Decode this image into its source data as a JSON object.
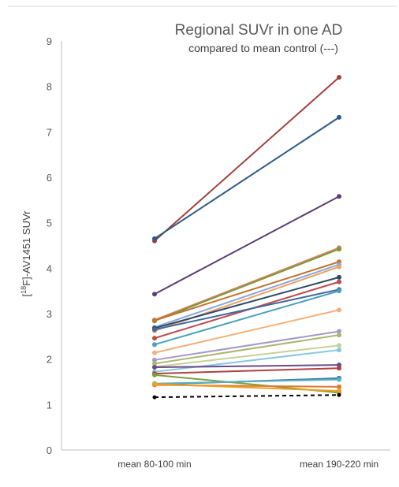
{
  "chart_data": {
    "type": "line",
    "title": "Regional SUVr in one AD",
    "subtitle": "compared to mean control (---)",
    "ylabel_prefix": "[",
    "ylabel_sup": "18",
    "ylabel_suffix": "F]-AV1451  SUVr",
    "xlabel": "",
    "categories": [
      "mean 80-100 min",
      "mean 190-220 min"
    ],
    "ylim": [
      0,
      9
    ],
    "yticks": [
      "0",
      "1",
      "2",
      "3",
      "4",
      "5",
      "6",
      "7",
      "8",
      "9"
    ],
    "grid": false,
    "legend": "none",
    "series": [
      {
        "values": [
          4.6,
          8.2
        ],
        "color": "#a0413a",
        "dashed": false
      },
      {
        "values": [
          4.65,
          7.32
        ],
        "color": "#2e5a8a",
        "dashed": false
      },
      {
        "values": [
          3.43,
          5.58
        ],
        "color": "#5a3f78",
        "dashed": false
      },
      {
        "values": [
          2.86,
          4.45
        ],
        "color": "#e08060",
        "dashed": false
      },
      {
        "values": [
          2.84,
          4.42
        ],
        "color": "#7a9a3a",
        "dashed": false
      },
      {
        "values": [
          2.85,
          4.14
        ],
        "color": "#c07530",
        "dashed": false
      },
      {
        "values": [
          2.7,
          4.08
        ],
        "color": "#8aa8d8",
        "dashed": false
      },
      {
        "values": [
          2.62,
          4.03
        ],
        "color": "#f0a060",
        "dashed": false
      },
      {
        "values": [
          2.68,
          3.8
        ],
        "color": "#2a4a6a",
        "dashed": false
      },
      {
        "values": [
          2.46,
          3.7
        ],
        "color": "#c04a4a",
        "dashed": false
      },
      {
        "values": [
          2.65,
          3.53
        ],
        "color": "#3a6aa0",
        "dashed": false
      },
      {
        "values": [
          2.32,
          3.5
        ],
        "color": "#4aa0b8",
        "dashed": false
      },
      {
        "values": [
          2.14,
          3.08
        ],
        "color": "#f4b07a",
        "dashed": false
      },
      {
        "values": [
          1.98,
          2.61
        ],
        "color": "#a898c8",
        "dashed": false
      },
      {
        "values": [
          1.9,
          2.53
        ],
        "color": "#a8b870",
        "dashed": false
      },
      {
        "values": [
          1.83,
          2.3
        ],
        "color": "#c8d098",
        "dashed": false
      },
      {
        "values": [
          1.72,
          2.2
        ],
        "color": "#88c8e0",
        "dashed": false
      },
      {
        "values": [
          1.82,
          1.87
        ],
        "color": "#6a4a8a",
        "dashed": false
      },
      {
        "values": [
          1.68,
          1.8
        ],
        "color": "#b04040",
        "dashed": false
      },
      {
        "values": [
          1.65,
          1.26
        ],
        "color": "#7aa040",
        "dashed": false
      },
      {
        "values": [
          1.44,
          1.58
        ],
        "color": "#3a7aa8",
        "dashed": false
      },
      {
        "values": [
          1.46,
          1.55
        ],
        "color": "#5ab0c0",
        "dashed": false
      },
      {
        "values": [
          1.43,
          1.39
        ],
        "color": "#e07830",
        "dashed": false
      },
      {
        "values": [
          1.45,
          1.3
        ],
        "color": "#f0a020",
        "dashed": false
      },
      {
        "values": [
          1.16,
          1.21
        ],
        "color": "#000000",
        "dashed": true
      }
    ]
  }
}
